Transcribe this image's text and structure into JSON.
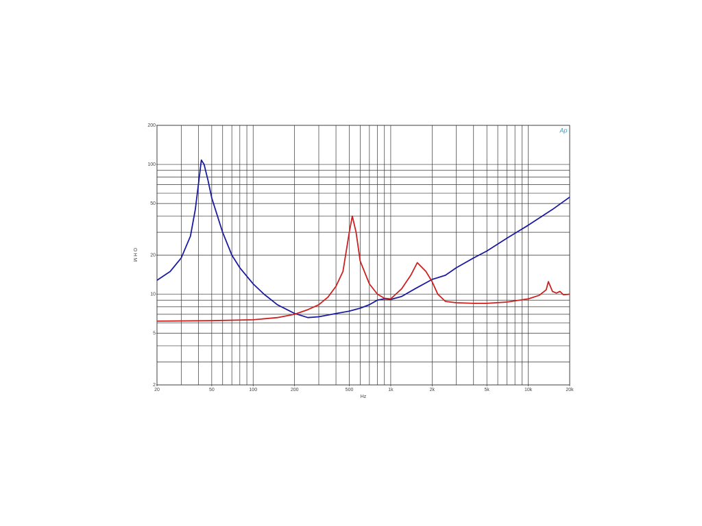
{
  "chart_data": {
    "type": "line",
    "logo": "Ap",
    "x_label": "Hz",
    "y_label": "O H M",
    "xscale": "log",
    "yscale": "log",
    "grid": true,
    "xlim": [
      20,
      20000
    ],
    "ylim": [
      2,
      200
    ],
    "xticks": [
      20,
      50,
      100,
      200,
      500,
      {
        "value": 1000,
        "label": "1k"
      },
      {
        "value": 2000,
        "label": "2k"
      },
      {
        "value": 5000,
        "label": "5k"
      },
      {
        "value": 10000,
        "label": "10k"
      },
      {
        "value": 20000,
        "label": "20k"
      }
    ],
    "yticks": [
      2,
      5,
      10,
      20,
      50,
      100,
      200
    ],
    "xgrid": [
      20,
      30,
      40,
      50,
      60,
      70,
      80,
      90,
      100,
      200,
      300,
      400,
      500,
      600,
      700,
      800,
      900,
      1000,
      2000,
      3000,
      4000,
      5000,
      6000,
      7000,
      8000,
      9000,
      10000,
      20000
    ],
    "ygrid": [
      2,
      3,
      4,
      5,
      6,
      7,
      8,
      9,
      10,
      20,
      30,
      40,
      50,
      60,
      70,
      80,
      90,
      100,
      200
    ],
    "series": [
      {
        "color": "#1a1aa0",
        "x": [
          20,
          25,
          30,
          35,
          38,
          40,
          42,
          44,
          47,
          50,
          60,
          70,
          80,
          100,
          120,
          150,
          200,
          250,
          300,
          400,
          500,
          600,
          700,
          800,
          900,
          1000,
          1200,
          1500,
          2000,
          2500,
          3000,
          4000,
          5000,
          7000,
          10000,
          15000,
          20000
        ],
        "values": [
          12.8,
          15,
          19,
          28,
          45,
          70,
          108,
          100,
          75,
          55,
          30,
          20,
          16,
          12,
          10,
          8.3,
          7.1,
          6.6,
          6.7,
          7.1,
          7.4,
          7.8,
          8.3,
          9.0,
          9.2,
          9.1,
          9.6,
          11,
          13,
          14,
          16,
          19,
          21.5,
          27,
          34,
          45,
          56
        ]
      },
      {
        "color": "#cc1f1f",
        "x": [
          20,
          50,
          100,
          150,
          200,
          250,
          300,
          350,
          400,
          450,
          500,
          526,
          560,
          600,
          700,
          800,
          900,
          1000,
          1200,
          1400,
          1560,
          1800,
          2000,
          2200,
          2500,
          3000,
          4000,
          5000,
          7000,
          10000,
          12000,
          13500,
          14000,
          15000,
          16000,
          17000,
          18000,
          20000
        ],
        "values": [
          6.2,
          6.25,
          6.35,
          6.6,
          7.0,
          7.6,
          8.3,
          9.5,
          11.5,
          15,
          30,
          40,
          30,
          18,
          12,
          10,
          9.3,
          9.2,
          11,
          14,
          17.5,
          15,
          12.5,
          10,
          8.8,
          8.6,
          8.5,
          8.5,
          8.7,
          9.2,
          9.8,
          10.8,
          12.5,
          10.5,
          10.2,
          10.5,
          9.9,
          10.0
        ]
      }
    ]
  }
}
